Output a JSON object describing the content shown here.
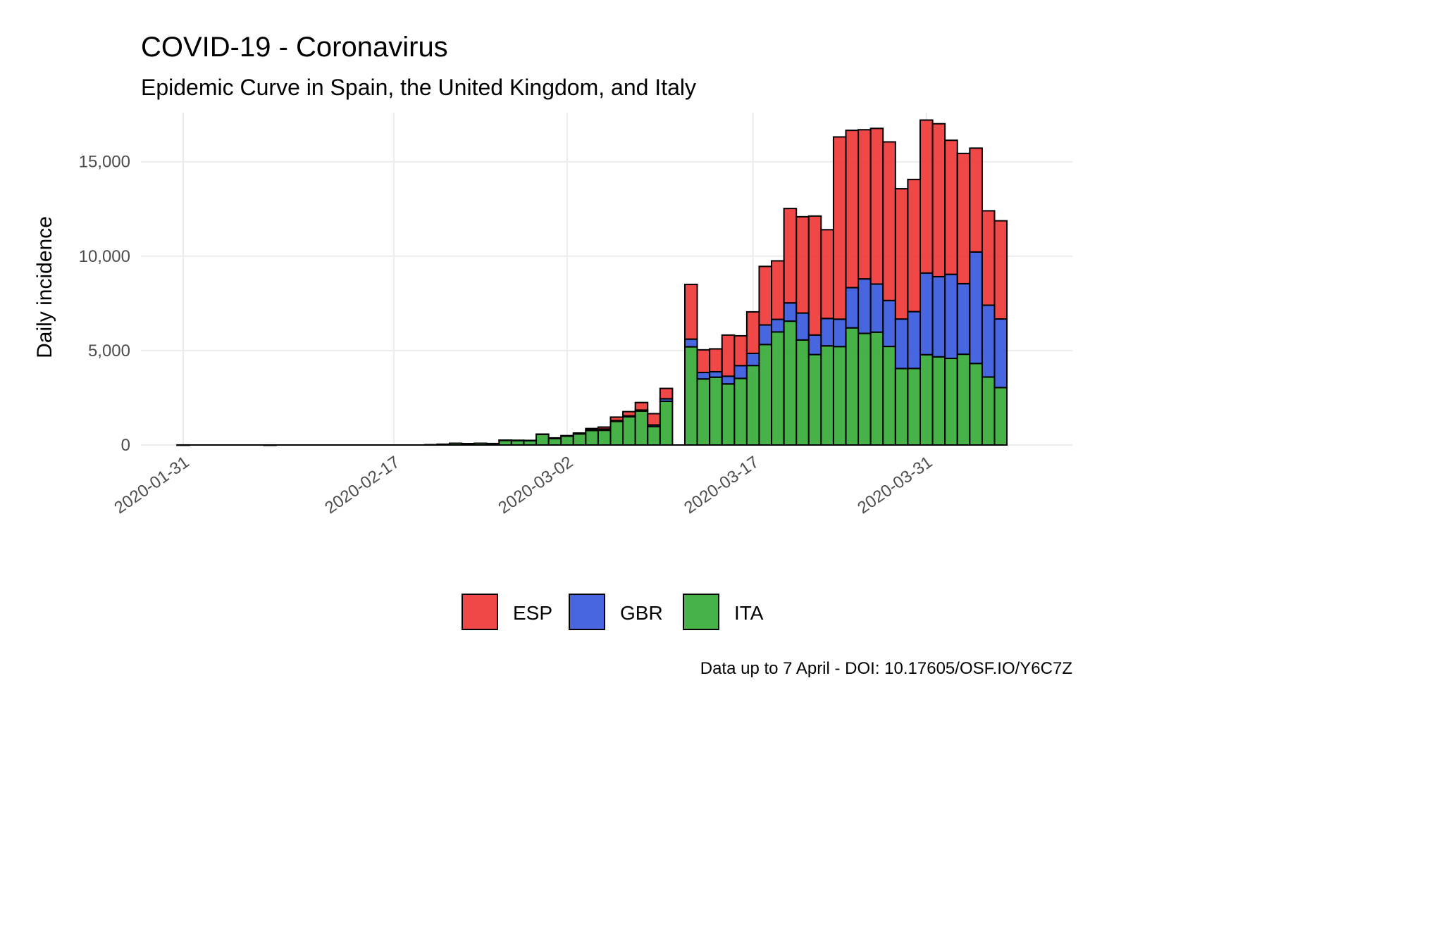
{
  "chart_data": {
    "type": "bar",
    "stacked": true,
    "title": "COVID-19 - Coronavirus",
    "subtitle": "Epidemic Curve in Spain, the United Kingdom, and Italy",
    "xlabel": "",
    "ylabel": "Daily incidence",
    "caption": "Data up to 7 April - DOI: 10.17605/OSF.IO/Y6C7Z",
    "x_start": "2020-01-31",
    "xlim": [
      "2020-01-31",
      "2020-04-07"
    ],
    "ylim": [
      0,
      17300
    ],
    "x_ticks": [
      "2020-01-31",
      "2020-02-17",
      "2020-03-02",
      "2020-03-17",
      "2020-03-31"
    ],
    "y_ticks": [
      0,
      5000,
      10000,
      15000
    ],
    "y_tick_labels": [
      "0",
      "5,000",
      "10,000",
      "15,000"
    ],
    "grid": true,
    "legend_position": "bottom",
    "series": [
      {
        "name": "ITA",
        "color": "#33AA33",
        "values": [
          3,
          0,
          0,
          0,
          0,
          0,
          0,
          1,
          0,
          0,
          0,
          0,
          0,
          0,
          0,
          0,
          0,
          0,
          0,
          0,
          17,
          42,
          93,
          74,
          93,
          78,
          250,
          238,
          240,
          566,
          342,
          466,
          587,
          769,
          778,
          1247,
          1492,
          1797,
          977,
          2313,
          0,
          5198,
          3497,
          3590,
          3233,
          3526,
          4207,
          5322,
          5986,
          6557,
          5560,
          4789,
          5249,
          5210,
          6203,
          5909,
          5974,
          5217,
          4050,
          4053,
          4782,
          4668,
          4585,
          4805,
          4316,
          3599,
          3039
        ]
      },
      {
        "name": "GBR",
        "color": "#3355DD",
        "values": [
          0,
          0,
          0,
          0,
          0,
          0,
          0,
          0,
          0,
          0,
          0,
          0,
          0,
          0,
          0,
          0,
          0,
          0,
          0,
          0,
          0,
          0,
          0,
          0,
          0,
          0,
          6,
          13,
          4,
          11,
          34,
          30,
          48,
          43,
          67,
          46,
          50,
          52,
          83,
          134,
          0,
          407,
          342,
          289,
          408,
          676,
          643,
          1035,
          665,
          967,
          1427,
          1035,
          1450,
          1452,
          2129,
          2885,
          2546,
          2433,
          2619,
          3009,
          4324,
          4244,
          4450,
          3735,
          5903,
          3802,
          3634
        ]
      },
      {
        "name": "ESP",
        "color": "#EE3333",
        "values": [
          0,
          0,
          0,
          0,
          0,
          0,
          0,
          0,
          0,
          0,
          0,
          0,
          0,
          0,
          0,
          0,
          0,
          0,
          0,
          0,
          0,
          0,
          0,
          0,
          0,
          0,
          0,
          0,
          0,
          0,
          0,
          0,
          0,
          60,
          104,
          183,
          225,
          400,
          600,
          550,
          0,
          2900,
          1200,
          1210,
          2180,
          1580,
          2200,
          3100,
          3100,
          5000,
          5100,
          6300,
          4700,
          9650,
          8330,
          7900,
          8245,
          8400,
          6900,
          7000,
          8100,
          8100,
          7100,
          6900,
          5500,
          5000,
          5200
        ]
      }
    ]
  }
}
